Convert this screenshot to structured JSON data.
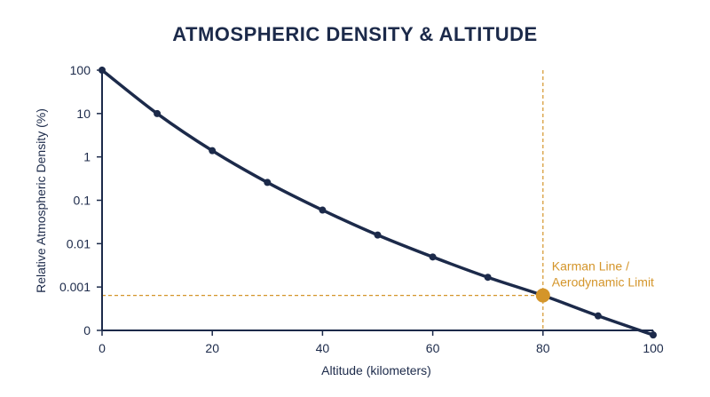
{
  "chart_data": {
    "type": "line",
    "title": "ATMOSPHERIC DENSITY & ALTITUDE",
    "xlabel": "Altitude (kilometers)",
    "ylabel": "Relative Atmospheric Density (%)",
    "y_scale": "log",
    "xlim": [
      0,
      100
    ],
    "x_ticks": [
      "0",
      "20",
      "40",
      "60",
      "80",
      "100"
    ],
    "y_ticks": [
      "0",
      "0.001",
      "0.01",
      "0.1",
      "1",
      "10",
      "100"
    ],
    "grid": false,
    "series": [
      {
        "x": [
          0,
          10,
          20,
          30,
          40,
          50,
          60,
          70,
          80,
          90,
          100
        ],
        "y": [
          100,
          10,
          1.4,
          0.26,
          0.06,
          0.016,
          0.005,
          0.0017,
          0.00065,
          0.00022,
          8e-05
        ]
      }
    ],
    "annotations": [
      {
        "x": 80,
        "y": 0.00065,
        "lines": [
          "Karman Line /",
          "Aerodynamic Limit"
        ]
      }
    ],
    "colors": {
      "line": "#1c2a4a",
      "annotation": "#d4952a",
      "text": "#1c2a4a"
    }
  }
}
